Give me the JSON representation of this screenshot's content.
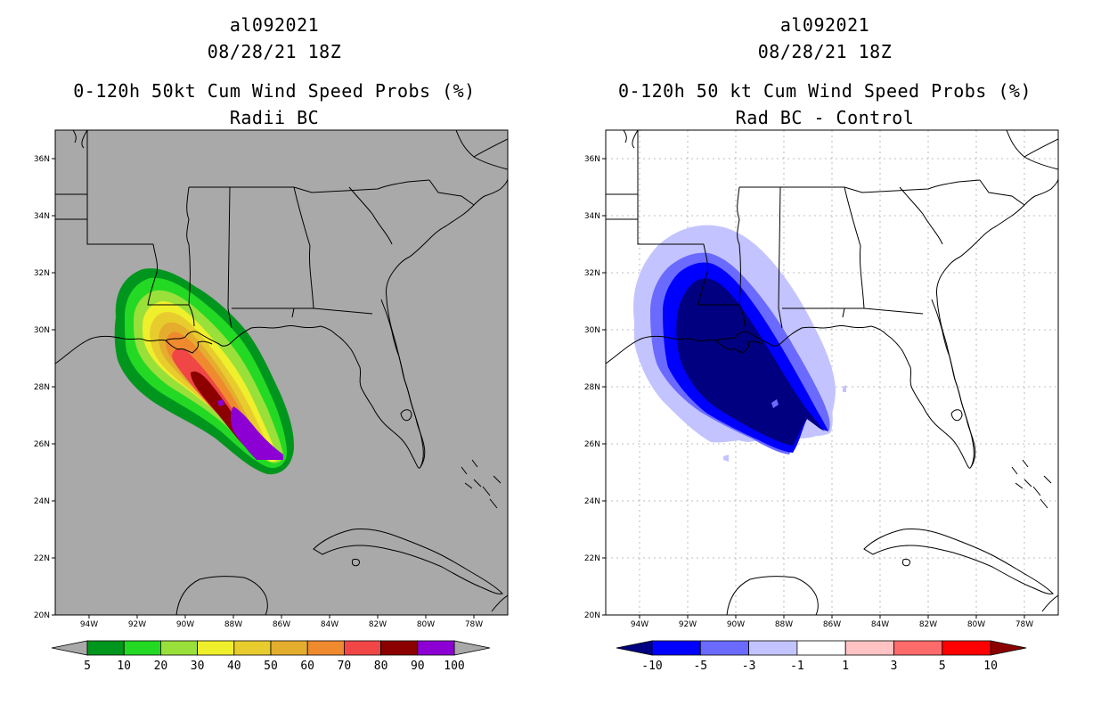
{
  "left": {
    "storm_id": "al092021",
    "date": "08/28/21 18Z",
    "title": "0-120h 50kt Cum Wind Speed Probs (%)",
    "subtitle": "Radii BC",
    "background_color": "#a9a9a9",
    "colorbar": {
      "colors": [
        "#00961e",
        "#24d924",
        "#9ae03a",
        "#f0ef2c",
        "#e8cc2e",
        "#e4ad2e",
        "#ef8a2e",
        "#f04646",
        "#8c0000",
        "#8c00d4"
      ],
      "labels": [
        "5",
        "10",
        "20",
        "30",
        "40",
        "50",
        "60",
        "70",
        "80",
        "90",
        "100"
      ],
      "end_color": "#a9a9a9"
    }
  },
  "right": {
    "storm_id": "al092021",
    "date": "08/28/21 18Z",
    "title": "0-120h 50 kt Cum Wind Speed Probs (%)",
    "subtitle": "Rad BC - Control",
    "background_color": "#ffffff",
    "colorbar": {
      "colors": [
        "#0000ff",
        "#6a6aff",
        "#c3c3ff",
        "#ffffff",
        "#ffc3c3",
        "#ff6a6a",
        "#ff0000"
      ],
      "labels": [
        "-10",
        "-5",
        "-3",
        "-1",
        "1",
        "3",
        "5",
        "10"
      ],
      "low_end_color": "#000080",
      "high_end_color": "#8b0000"
    }
  },
  "axes": {
    "lat_labels": [
      "36N",
      "34N",
      "32N",
      "30N",
      "28N",
      "26N",
      "24N",
      "22N",
      "20N"
    ],
    "lon_labels": [
      "94W",
      "92W",
      "90W",
      "88W",
      "86W",
      "84W",
      "82W",
      "80W",
      "78W"
    ]
  }
}
